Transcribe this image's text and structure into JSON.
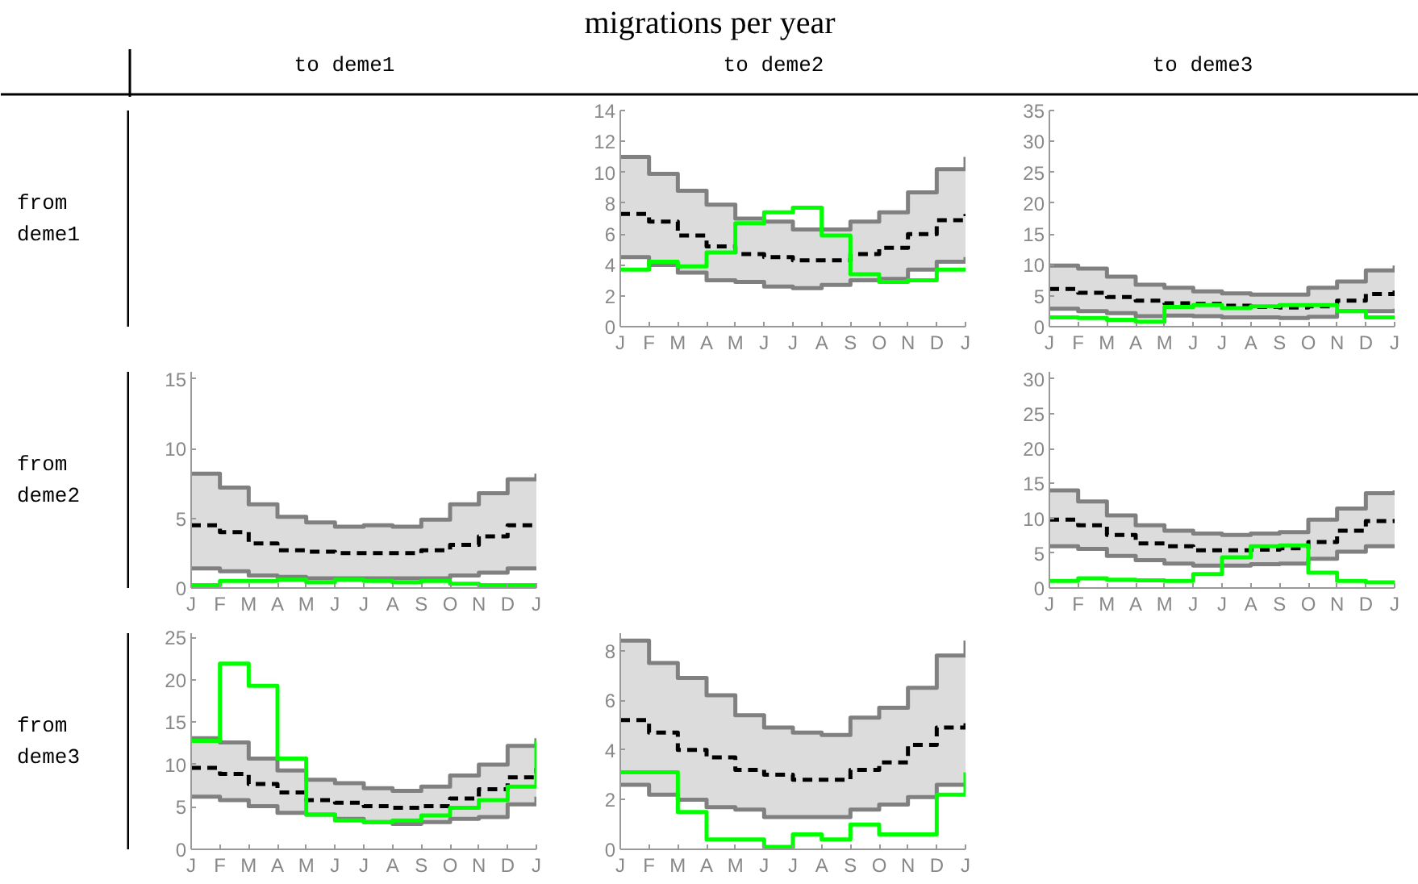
{
  "chart_data": [
    {
      "type": "other",
      "title": "migrations per year",
      "annotations": [
        "to deme1",
        "to deme2",
        "to deme3",
        "from\ndeme1",
        "from\ndeme2",
        "from\ndeme3"
      ]
    },
    {
      "type": "step",
      "categories": [
        "J",
        "F",
        "M",
        "A",
        "M",
        "J",
        "J",
        "A",
        "S",
        "O",
        "N",
        "D",
        "J"
      ],
      "ylim": [
        0,
        14
      ],
      "yticks": [
        0,
        2,
        4,
        6,
        8,
        10,
        12,
        14
      ],
      "series": [
        {
          "color": "#808080",
          "values": [
            11.0,
            9.9,
            8.8,
            7.9,
            7.0,
            6.8,
            6.3,
            6.3,
            6.8,
            7.4,
            8.7,
            10.2,
            11.0
          ]
        },
        {
          "color": "#808080",
          "values": [
            4.5,
            4.0,
            3.5,
            3.0,
            2.9,
            2.6,
            2.5,
            2.7,
            3.0,
            3.1,
            3.7,
            4.2,
            4.5
          ]
        },
        {
          "color": "#000000",
          "line_style": "dashed",
          "values": [
            7.3,
            6.8,
            5.9,
            5.2,
            4.7,
            4.5,
            4.3,
            4.3,
            4.7,
            5.1,
            6.0,
            6.9,
            7.3
          ],
          "lower": [
            4.5,
            4.0,
            3.5,
            3.0,
            2.9,
            2.6,
            2.5,
            2.7,
            3.0,
            3.1,
            3.7,
            4.2,
            4.5
          ],
          "upper": [
            11.0,
            9.9,
            8.8,
            7.9,
            7.0,
            6.8,
            6.3,
            6.3,
            6.8,
            7.4,
            8.7,
            10.2,
            11.0
          ]
        },
        {
          "color": "#00ff00",
          "values": [
            3.7,
            4.2,
            3.9,
            4.8,
            6.7,
            7.4,
            7.7,
            5.9,
            3.4,
            2.9,
            3.0,
            3.7,
            3.7
          ]
        }
      ]
    },
    {
      "type": "step",
      "categories": [
        "J",
        "F",
        "M",
        "A",
        "M",
        "J",
        "J",
        "A",
        "S",
        "O",
        "N",
        "D",
        "J"
      ],
      "ylim": [
        0,
        35
      ],
      "yticks": [
        0,
        5,
        10,
        15,
        20,
        25,
        30,
        35
      ],
      "series": [
        {
          "color": "#808080",
          "values": [
            9.9,
            9.4,
            8.1,
            6.8,
            6.3,
            5.7,
            5.4,
            5.2,
            5.2,
            6.3,
            7.3,
            9.1,
            9.9
          ]
        },
        {
          "color": "#808080",
          "values": [
            2.9,
            2.5,
            2.2,
            1.7,
            1.8,
            1.7,
            1.5,
            1.5,
            1.4,
            1.6,
            2.5,
            2.5,
            2.9
          ]
        },
        {
          "color": "#000000",
          "line_style": "dashed",
          "values": [
            6.1,
            5.5,
            4.8,
            4.2,
            3.8,
            3.7,
            3.4,
            3.2,
            3.1,
            3.3,
            4.2,
            5.3,
            6.1
          ],
          "lower": [
            2.9,
            2.5,
            2.2,
            1.7,
            1.8,
            1.7,
            1.5,
            1.5,
            1.4,
            1.6,
            2.5,
            2.5,
            2.9
          ],
          "upper": [
            9.9,
            9.4,
            8.1,
            6.8,
            6.3,
            5.7,
            5.4,
            5.2,
            5.2,
            6.3,
            7.3,
            9.1,
            9.9
          ]
        },
        {
          "color": "#00ff00",
          "values": [
            1.5,
            1.4,
            1.1,
            0.8,
            3.2,
            3.5,
            3.0,
            3.3,
            3.5,
            3.5,
            2.5,
            1.5,
            1.5
          ]
        }
      ]
    },
    {
      "type": "step",
      "categories": [
        "J",
        "F",
        "M",
        "A",
        "M",
        "J",
        "J",
        "A",
        "S",
        "O",
        "N",
        "D",
        "J"
      ],
      "ylim": [
        0,
        15.5
      ],
      "yticks": [
        0,
        5,
        10,
        15
      ],
      "series": [
        {
          "color": "#808080",
          "values": [
            8.2,
            7.2,
            6.0,
            5.1,
            4.7,
            4.4,
            4.5,
            4.4,
            4.9,
            6.0,
            6.8,
            7.8,
            8.2
          ]
        },
        {
          "color": "#808080",
          "values": [
            1.4,
            1.2,
            0.9,
            0.8,
            0.7,
            0.7,
            0.7,
            0.7,
            0.7,
            0.9,
            1.1,
            1.4,
            1.4
          ]
        },
        {
          "color": "#000000",
          "line_style": "dashed",
          "values": [
            4.5,
            4.0,
            3.2,
            2.7,
            2.6,
            2.5,
            2.5,
            2.5,
            2.7,
            3.1,
            3.7,
            4.5,
            4.5
          ],
          "lower": [
            1.4,
            1.2,
            0.9,
            0.8,
            0.7,
            0.7,
            0.7,
            0.7,
            0.7,
            0.9,
            1.1,
            1.4,
            1.4
          ],
          "upper": [
            8.2,
            7.2,
            6.0,
            5.1,
            4.7,
            4.4,
            4.5,
            4.4,
            4.9,
            6.0,
            6.8,
            7.8,
            8.2
          ]
        },
        {
          "color": "#00ff00",
          "values": [
            0.2,
            0.5,
            0.5,
            0.6,
            0.4,
            0.6,
            0.5,
            0.4,
            0.5,
            0.3,
            0.2,
            0.2,
            0.2
          ]
        }
      ]
    },
    {
      "type": "step",
      "categories": [
        "J",
        "F",
        "M",
        "A",
        "M",
        "J",
        "J",
        "A",
        "S",
        "O",
        "N",
        "D",
        "J"
      ],
      "ylim": [
        0,
        31
      ],
      "yticks": [
        0,
        5,
        10,
        15,
        20,
        25,
        30
      ],
      "series": [
        {
          "color": "#808080",
          "values": [
            14.0,
            12.4,
            10.4,
            9.0,
            8.2,
            7.8,
            7.6,
            7.8,
            8.0,
            9.8,
            11.4,
            13.6,
            14.0
          ]
        },
        {
          "color": "#808080",
          "values": [
            6.0,
            5.6,
            4.6,
            4.0,
            3.5,
            3.2,
            3.2,
            3.4,
            3.5,
            4.2,
            5.2,
            6.0,
            6.0
          ]
        },
        {
          "color": "#000000",
          "line_style": "dashed",
          "values": [
            9.8,
            9.0,
            7.6,
            6.4,
            6.0,
            5.4,
            5.4,
            5.5,
            5.7,
            6.6,
            8.2,
            9.6,
            9.8
          ],
          "lower": [
            6.0,
            5.6,
            4.6,
            4.0,
            3.5,
            3.2,
            3.2,
            3.4,
            3.5,
            4.2,
            5.2,
            6.0,
            6.0
          ],
          "upper": [
            14.0,
            12.4,
            10.4,
            9.0,
            8.2,
            7.8,
            7.6,
            7.8,
            8.0,
            9.8,
            11.4,
            13.6,
            14.0
          ]
        },
        {
          "color": "#00ff00",
          "values": [
            1.0,
            1.4,
            1.2,
            1.1,
            1.0,
            2.0,
            4.4,
            6.0,
            6.1,
            2.2,
            1.0,
            0.8,
            1.0
          ]
        }
      ]
    },
    {
      "type": "step",
      "categories": [
        "J",
        "F",
        "M",
        "A",
        "M",
        "J",
        "J",
        "A",
        "S",
        "O",
        "N",
        "D",
        "J"
      ],
      "ylim": [
        0,
        25.5
      ],
      "yticks": [
        0,
        5,
        10,
        15,
        20,
        25
      ],
      "series": [
        {
          "color": "#808080",
          "values": [
            13.1,
            12.6,
            10.7,
            9.3,
            8.2,
            7.8,
            7.2,
            6.9,
            7.4,
            8.7,
            10.0,
            12.2,
            13.1
          ]
        },
        {
          "color": "#808080",
          "values": [
            6.2,
            5.8,
            5.1,
            4.3,
            4.1,
            3.6,
            3.2,
            3.0,
            3.2,
            3.6,
            3.8,
            5.3,
            6.2
          ]
        },
        {
          "color": "#000000",
          "line_style": "dashed",
          "values": [
            9.6,
            8.9,
            7.7,
            6.7,
            5.8,
            5.5,
            5.1,
            4.9,
            5.1,
            6.0,
            7.1,
            8.5,
            9.6
          ],
          "lower": [
            6.2,
            5.8,
            5.1,
            4.3,
            4.1,
            3.6,
            3.2,
            3.0,
            3.2,
            3.6,
            3.8,
            5.3,
            6.2
          ],
          "upper": [
            13.1,
            12.6,
            10.7,
            9.3,
            8.2,
            7.8,
            7.2,
            6.9,
            7.4,
            8.7,
            10.0,
            12.2,
            13.1
          ]
        },
        {
          "color": "#00ff00",
          "values": [
            12.8,
            21.9,
            19.3,
            10.7,
            4.1,
            3.4,
            3.2,
            3.4,
            4.0,
            4.9,
            5.8,
            7.4,
            12.8
          ]
        }
      ]
    },
    {
      "type": "step",
      "categories": [
        "J",
        "F",
        "M",
        "A",
        "M",
        "J",
        "J",
        "A",
        "S",
        "O",
        "N",
        "D",
        "J"
      ],
      "ylim": [
        0,
        8.7
      ],
      "yticks": [
        0,
        2,
        4,
        6,
        8
      ],
      "series": [
        {
          "color": "#808080",
          "values": [
            8.4,
            7.5,
            6.9,
            6.2,
            5.4,
            4.9,
            4.7,
            4.6,
            5.3,
            5.7,
            6.5,
            7.8,
            8.4
          ]
        },
        {
          "color": "#808080",
          "values": [
            2.6,
            2.2,
            2.0,
            1.7,
            1.6,
            1.3,
            1.3,
            1.3,
            1.6,
            1.8,
            2.1,
            2.6,
            2.6
          ]
        },
        {
          "color": "#000000",
          "line_style": "dashed",
          "values": [
            5.2,
            4.7,
            4.0,
            3.7,
            3.2,
            3.0,
            2.8,
            2.8,
            3.2,
            3.5,
            4.2,
            4.9,
            5.2
          ],
          "lower": [
            2.6,
            2.2,
            2.0,
            1.7,
            1.6,
            1.3,
            1.3,
            1.3,
            1.6,
            1.8,
            2.1,
            2.6,
            2.6
          ],
          "upper": [
            8.4,
            7.5,
            6.9,
            6.2,
            5.4,
            4.9,
            4.7,
            4.6,
            5.3,
            5.7,
            6.5,
            7.8,
            8.4
          ]
        },
        {
          "color": "#00ff00",
          "values": [
            3.1,
            3.1,
            1.5,
            0.4,
            0.4,
            0.1,
            0.6,
            0.4,
            1.0,
            0.6,
            0.6,
            2.2,
            3.1
          ]
        }
      ]
    }
  ]
}
